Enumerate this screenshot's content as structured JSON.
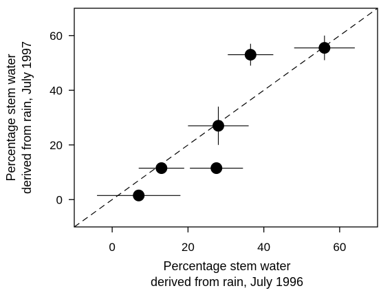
{
  "chart_data": {
    "type": "scatter",
    "xlabel": [
      "Percentage stem water",
      "derived from rain, July 1996"
    ],
    "ylabel": [
      "Percentage stem water",
      "derived from rain, July 1997"
    ],
    "xlim": [
      -10,
      70
    ],
    "ylim": [
      -10,
      70
    ],
    "xticks": [
      0,
      20,
      40,
      60
    ],
    "yticks": [
      0,
      20,
      40,
      60
    ],
    "identity_line": true,
    "series": [
      {
        "points": [
          {
            "x": 7,
            "y": 1.5,
            "xerr": 11,
            "yerr": 0
          },
          {
            "x": 13,
            "y": 11.5,
            "xerr": 6,
            "yerr": 0
          },
          {
            "x": 27.5,
            "y": 11.5,
            "xerr": 7,
            "yerr": 0
          },
          {
            "x": 28,
            "y": 27,
            "xerr": 8,
            "yerr": 7
          },
          {
            "x": 36.5,
            "y": 53,
            "xerr": 6,
            "yerr": 4
          },
          {
            "x": 56,
            "y": 55.5,
            "xerr": 8,
            "yerr": 4.5
          }
        ]
      }
    ],
    "colors": {
      "marker": "#000000",
      "axis": "#000000"
    }
  }
}
